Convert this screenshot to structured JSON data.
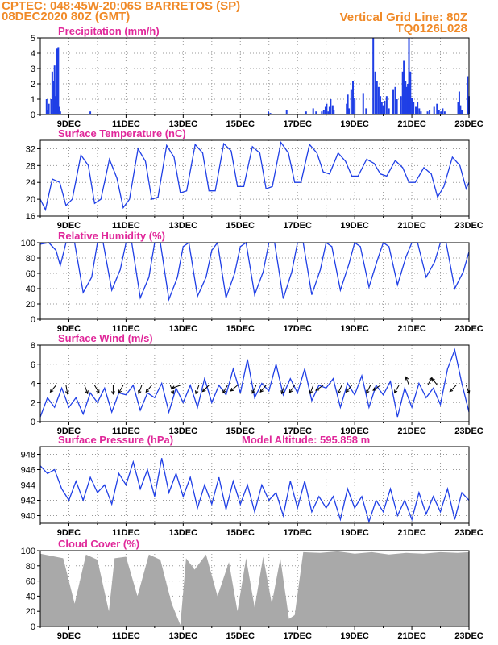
{
  "header": {
    "line1": "CPTEC:   048:45W-20:06S  BARRETOS (SP)",
    "line2": "08DEC2020 80Z (GMT)",
    "grid_note": "Vertical Grid Line: 80Z",
    "code": "TQ0126L028"
  },
  "colors": {
    "header": "#f08a28",
    "panel_title": "#e0289a",
    "series": "#1f3fe6",
    "cloud": "#a9a9a9",
    "arrows": "#000000"
  },
  "date_ticks": [
    "9DEC",
    "11DEC",
    "13DEC",
    "15DEC",
    "17DEC",
    "19DEC",
    "21DEC",
    "23DEC"
  ],
  "chart_data": [
    {
      "id": "precip",
      "type": "bar",
      "title": "Precipitation (mm/h)",
      "x_start": "08DEC2020 08Z",
      "x_end": "23DEC2020",
      "ylim": [
        0,
        5
      ],
      "yticks": [
        0,
        1,
        2,
        3,
        4,
        5
      ],
      "grid": true,
      "x": [
        8.22,
        8.25,
        8.3,
        8.38,
        8.42,
        8.47,
        8.5,
        8.54,
        8.58,
        8.63,
        8.66,
        8.7,
        9.75,
        15.98,
        16.05,
        16.62,
        17.3,
        17.55,
        17.65,
        17.85,
        17.92,
        17.98,
        18.02,
        18.08,
        18.12,
        18.16,
        18.23,
        18.27,
        18.72,
        18.76,
        18.8,
        18.88,
        18.94,
        19.0,
        19.3,
        19.4,
        19.65,
        19.72,
        19.78,
        19.84,
        19.9,
        19.95,
        20.0,
        20.05,
        20.12,
        20.2,
        20.35,
        20.42,
        20.48,
        20.62,
        20.68,
        20.72,
        20.78,
        20.82,
        20.86,
        20.9,
        20.95,
        21.0,
        21.06,
        21.14,
        21.2,
        21.26,
        21.32,
        21.55,
        21.62,
        21.78,
        21.88,
        21.95,
        22.02,
        22.08,
        22.15,
        22.62,
        22.66,
        22.7,
        22.75,
        22.95,
        23.0
      ],
      "values": [
        1.0,
        0.3,
        0.7,
        1.0,
        2.8,
        2.2,
        3.2,
        1.2,
        4.3,
        4.4,
        0.5,
        0.2,
        0.2,
        0.2,
        0.1,
        0.3,
        0.2,
        0.4,
        0.2,
        0.2,
        0.3,
        0.5,
        0.7,
        0.2,
        0.5,
        1.0,
        0.6,
        0.3,
        0.7,
        1.3,
        0.4,
        1.6,
        2.2,
        1.1,
        1.4,
        0.4,
        5.0,
        2.8,
        2.2,
        1.8,
        1.2,
        0.8,
        0.6,
        0.9,
        1.2,
        0.4,
        1.6,
        1.8,
        1.0,
        1.2,
        2.8,
        3.5,
        2.2,
        1.8,
        2.0,
        5.0,
        2.8,
        1.1,
        0.8,
        0.5,
        0.8,
        0.4,
        0.2,
        0.2,
        0.3,
        0.5,
        0.7,
        0.3,
        0.2,
        0.4,
        0.2,
        0.8,
        1.5,
        0.6,
        0.3,
        2.5,
        1.2
      ]
    },
    {
      "id": "temp",
      "type": "line",
      "title": "Surface Temperature (nC)",
      "ylim": [
        16,
        34
      ],
      "yticks": [
        16,
        20,
        24,
        28,
        32
      ],
      "grid": true,
      "x": [
        8.0,
        8.18,
        8.42,
        8.68,
        8.9,
        9.12,
        9.42,
        9.68,
        9.9,
        10.12,
        10.42,
        10.68,
        10.9,
        11.12,
        11.42,
        11.68,
        11.9,
        12.12,
        12.42,
        12.68,
        12.9,
        13.12,
        13.42,
        13.68,
        13.9,
        14.12,
        14.42,
        14.68,
        14.9,
        15.12,
        15.42,
        15.68,
        15.9,
        16.12,
        16.42,
        16.68,
        16.9,
        17.12,
        17.42,
        17.68,
        17.9,
        18.12,
        18.42,
        18.68,
        18.9,
        19.12,
        19.42,
        19.68,
        19.9,
        20.12,
        20.42,
        20.68,
        20.9,
        21.12,
        21.42,
        21.68,
        21.9,
        22.12,
        22.42,
        22.68,
        22.9,
        23.0
      ],
      "values": [
        20,
        17.5,
        24.8,
        24,
        18.5,
        20,
        30.5,
        28,
        19,
        20,
        29.5,
        25,
        18,
        20,
        32,
        29,
        20,
        20.5,
        32.8,
        30,
        21.5,
        22,
        33,
        31,
        22,
        22,
        33.2,
        31.5,
        23,
        23,
        32.5,
        31,
        22.5,
        23,
        33.5,
        31,
        24,
        24,
        33,
        31,
        26.5,
        26,
        31,
        29,
        25.5,
        25.5,
        29.5,
        28.5,
        26,
        25.5,
        29.2,
        27.5,
        24,
        24,
        27.5,
        26,
        20.5,
        23,
        30,
        28,
        22.5,
        24
      ]
    },
    {
      "id": "rh",
      "type": "line",
      "title": "Relative Humidity (%)",
      "ylim": [
        0,
        100
      ],
      "yticks": [
        0,
        20,
        40,
        60,
        80,
        100
      ],
      "grid": true,
      "x": [
        8.0,
        8.3,
        8.55,
        8.7,
        8.9,
        9.2,
        9.5,
        9.8,
        10.0,
        10.2,
        10.5,
        10.8,
        11.0,
        11.2,
        11.5,
        11.8,
        12.0,
        12.2,
        12.5,
        12.8,
        13.0,
        13.2,
        13.5,
        13.8,
        14.0,
        14.2,
        14.5,
        14.8,
        15.0,
        15.2,
        15.5,
        15.8,
        16.0,
        16.2,
        16.5,
        16.8,
        17.0,
        17.2,
        17.5,
        17.8,
        18.0,
        18.2,
        18.5,
        18.8,
        19.0,
        19.2,
        19.5,
        19.8,
        20.0,
        20.2,
        20.5,
        20.8,
        21.0,
        21.2,
        21.5,
        21.8,
        22.0,
        22.2,
        22.5,
        22.8,
        23.0
      ],
      "values": [
        98,
        100,
        90,
        70,
        100,
        100,
        35,
        55,
        100,
        100,
        38,
        65,
        100,
        100,
        28,
        55,
        100,
        100,
        26,
        55,
        95,
        100,
        30,
        55,
        90,
        100,
        28,
        60,
        95,
        100,
        32,
        62,
        100,
        100,
        27,
        62,
        100,
        100,
        32,
        65,
        100,
        95,
        38,
        72,
        100,
        95,
        42,
        78,
        100,
        95,
        45,
        82,
        100,
        100,
        55,
        75,
        100,
        100,
        40,
        62,
        88
      ]
    },
    {
      "id": "wind",
      "type": "line",
      "title": "Surface Wind (m/s)",
      "ylim": [
        0,
        8
      ],
      "yticks": [
        0,
        2,
        4,
        6,
        8
      ],
      "grid": true,
      "x": [
        8.0,
        8.25,
        8.5,
        8.75,
        9.0,
        9.25,
        9.5,
        9.75,
        10.0,
        10.25,
        10.5,
        10.75,
        11.0,
        11.25,
        11.5,
        11.75,
        12.0,
        12.25,
        12.5,
        12.75,
        13.0,
        13.25,
        13.5,
        13.75,
        14.0,
        14.25,
        14.5,
        14.75,
        15.0,
        15.25,
        15.5,
        15.75,
        16.0,
        16.25,
        16.5,
        16.75,
        17.0,
        17.25,
        17.5,
        17.75,
        18.0,
        18.25,
        18.5,
        18.75,
        19.0,
        19.25,
        19.5,
        19.75,
        20.0,
        20.25,
        20.5,
        20.75,
        21.0,
        21.25,
        21.5,
        21.75,
        22.0,
        22.25,
        22.5,
        22.75,
        23.0
      ],
      "values": [
        0.5,
        2.5,
        1.5,
        3.5,
        1.5,
        2.5,
        0.8,
        3.0,
        2.0,
        3.5,
        1.0,
        3.0,
        2.8,
        3.8,
        1.2,
        3.0,
        2.5,
        4.0,
        1.0,
        3.5,
        2.0,
        3.8,
        1.5,
        4.5,
        2.0,
        3.8,
        2.8,
        5.5,
        3.0,
        6.5,
        2.5,
        4.0,
        3.2,
        6.0,
        2.8,
        4.5,
        3.0,
        5.5,
        2.2,
        3.8,
        3.5,
        4.5,
        1.5,
        4.0,
        2.8,
        4.8,
        1.5,
        3.8,
        2.8,
        4.2,
        0.5,
        3.5,
        1.5,
        4.0,
        2.5,
        3.5,
        1.8,
        5.5,
        7.5,
        4.0,
        1.0
      ],
      "arrows": {
        "x": [
          8.55,
          8.9,
          9.55,
          9.9,
          10.55,
          10.9,
          11.55,
          11.9,
          12.55,
          12.9,
          13.55,
          13.9,
          14.55,
          14.9,
          15.55,
          15.9,
          16.55,
          16.9,
          17.55,
          17.9,
          18.55,
          18.9,
          19.55,
          19.9,
          20.55,
          20.9,
          21.55,
          21.9,
          22.55,
          22.9
        ],
        "dir_deg": [
          230,
          280,
          290,
          300,
          270,
          240,
          250,
          230,
          290,
          200,
          250,
          225,
          240,
          220,
          245,
          230,
          250,
          235,
          250,
          215,
          245,
          230,
          245,
          215,
          240,
          110,
          60,
          130,
          225,
          290
        ]
      }
    },
    {
      "id": "pres",
      "type": "line",
      "title": "Surface Pressure (hPa)",
      "annotation": "Model Altitude: 595.858 m",
      "ylim": [
        939,
        949
      ],
      "yticks": [
        940,
        942,
        944,
        946,
        948
      ],
      "grid": true,
      "x": [
        8.0,
        8.25,
        8.5,
        8.75,
        9.0,
        9.25,
        9.5,
        9.75,
        10.0,
        10.25,
        10.5,
        10.75,
        11.0,
        11.25,
        11.5,
        11.75,
        12.0,
        12.25,
        12.5,
        12.75,
        13.0,
        13.25,
        13.5,
        13.75,
        14.0,
        14.25,
        14.5,
        14.75,
        15.0,
        15.25,
        15.5,
        15.75,
        16.0,
        16.25,
        16.5,
        16.75,
        17.0,
        17.25,
        17.5,
        17.75,
        18.0,
        18.25,
        18.5,
        18.75,
        19.0,
        19.25,
        19.5,
        19.75,
        20.0,
        20.25,
        20.5,
        20.75,
        21.0,
        21.25,
        21.5,
        21.75,
        22.0,
        22.25,
        22.5,
        22.75,
        23.0
      ],
      "values": [
        946.5,
        945.5,
        946.0,
        943.5,
        942.0,
        944.5,
        942.0,
        945.0,
        943.0,
        944.0,
        941.5,
        945.5,
        944.0,
        947.0,
        943.5,
        946.0,
        942.5,
        947.5,
        943.0,
        945.5,
        942.5,
        945.0,
        941.0,
        944.0,
        941.5,
        945.0,
        940.8,
        944.5,
        941.5,
        944.0,
        940.5,
        944.0,
        942.0,
        943.0,
        940.0,
        944.5,
        941.0,
        944.5,
        940.5,
        942.5,
        941.0,
        942.5,
        939.5,
        943.5,
        941.0,
        942.5,
        939.2,
        942.0,
        940.5,
        943.5,
        940.0,
        942.0,
        939.5,
        943.0,
        940.2,
        942.5,
        940.5,
        943.5,
        939.5,
        943.0,
        942.0
      ]
    },
    {
      "id": "cloud",
      "type": "area",
      "title": "Cloud Cover (%)",
      "ylim": [
        0,
        100
      ],
      "yticks": [
        0,
        20,
        40,
        60,
        80,
        100
      ],
      "grid": true,
      "x": [
        8.0,
        8.8,
        9.2,
        9.6,
        10.0,
        10.4,
        10.6,
        11.0,
        11.4,
        11.8,
        12.2,
        12.6,
        12.9,
        13.1,
        13.4,
        13.8,
        14.2,
        14.6,
        14.9,
        15.2,
        15.5,
        15.8,
        16.1,
        16.4,
        16.7,
        16.9,
        17.2,
        17.8,
        18.4,
        19.0,
        19.6,
        20.2,
        20.8,
        21.4,
        22.0,
        22.6,
        23.0
      ],
      "values": [
        96,
        90,
        30,
        95,
        88,
        20,
        90,
        92,
        40,
        95,
        88,
        30,
        2,
        90,
        75,
        95,
        40,
        85,
        20,
        90,
        25,
        92,
        30,
        90,
        10,
        15,
        98,
        97,
        99,
        96,
        98,
        95,
        97,
        96,
        98,
        97,
        98
      ]
    }
  ]
}
